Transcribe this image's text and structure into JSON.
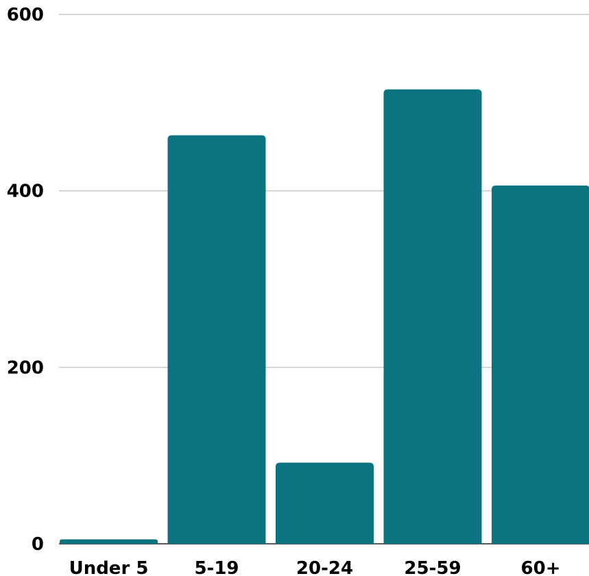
{
  "chart_data": {
    "type": "bar",
    "title": "",
    "xlabel": "",
    "ylabel": "",
    "categories": [
      "Under 5",
      "5-19",
      "20-24",
      "25-59",
      "60+"
    ],
    "values": [
      5,
      463,
      92,
      515,
      406
    ],
    "ylim": [
      0,
      600
    ],
    "yticks": [
      "0",
      "200",
      "400",
      "600"
    ],
    "grid": true,
    "legend": "none",
    "bar_color": "#0b7480"
  }
}
